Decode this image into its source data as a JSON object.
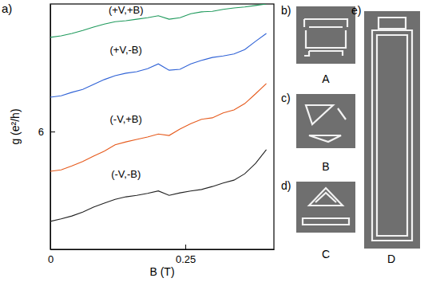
{
  "chart_data": {
    "type": "line",
    "title": "a)",
    "x_label": "B (T)",
    "y_label": "g (e²/h)",
    "xlim": [
      0,
      0.414
    ],
    "ylim": [
      3.6,
      8.6
    ],
    "xticks": [
      0,
      0.25
    ],
    "yticks": [
      6
    ],
    "x": [
      0,
      0.02,
      0.04,
      0.06,
      0.08,
      0.1,
      0.12,
      0.14,
      0.16,
      0.18,
      0.2,
      0.22,
      0.24,
      0.26,
      0.28,
      0.3,
      0.32,
      0.34,
      0.36,
      0.38,
      0.4
    ],
    "series": [
      {
        "name": "(+V,+B)",
        "color": "#1f9a5c",
        "values": [
          7.92,
          7.95,
          8.0,
          8.06,
          8.13,
          8.19,
          8.24,
          8.26,
          8.29,
          8.32,
          8.36,
          8.29,
          8.32,
          8.4,
          8.44,
          8.45,
          8.49,
          8.52,
          8.54,
          8.57,
          8.6
        ]
      },
      {
        "name": "(+V,-B)",
        "color": "#2f62d6",
        "values": [
          6.7,
          6.73,
          6.8,
          6.86,
          6.96,
          7.06,
          7.14,
          7.19,
          7.22,
          7.28,
          7.38,
          7.25,
          7.27,
          7.38,
          7.45,
          7.51,
          7.54,
          7.58,
          7.67,
          7.84,
          8.0
        ]
      },
      {
        "name": "(-V,+B)",
        "color": "#e65a1c",
        "values": [
          5.19,
          5.22,
          5.3,
          5.39,
          5.5,
          5.6,
          5.73,
          5.79,
          5.84,
          5.89,
          5.95,
          5.92,
          6.05,
          6.16,
          6.25,
          6.28,
          6.38,
          6.44,
          6.57,
          6.77,
          6.98
        ]
      },
      {
        "name": "(-V,-B)",
        "color": "#222222",
        "values": [
          4.17,
          4.22,
          4.28,
          4.36,
          4.46,
          4.54,
          4.62,
          4.67,
          4.7,
          4.74,
          4.79,
          4.7,
          4.75,
          4.79,
          4.82,
          4.88,
          4.95,
          5.01,
          5.14,
          5.35,
          5.63
        ]
      }
    ]
  },
  "images": [
    {
      "panel": "b)",
      "label": "A"
    },
    {
      "panel": "c)",
      "label": "B"
    },
    {
      "panel": "d)",
      "label": "C"
    },
    {
      "panel": "e)",
      "label": "D"
    }
  ]
}
